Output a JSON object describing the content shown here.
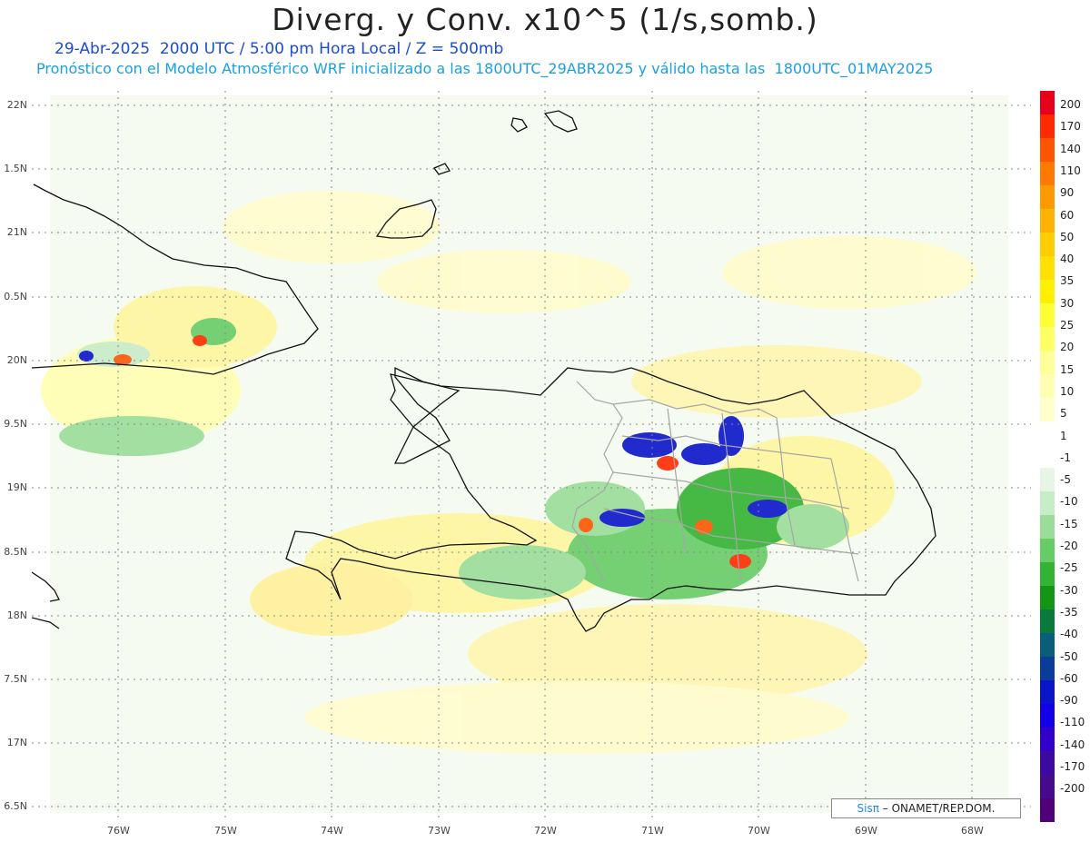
{
  "title": "Diverg. y Conv. x10^5 (1/s,somb.)",
  "subtitle_time": "29-Abr-2025  2000 UTC / 5:00 pm Hora Local / Z = 500mb",
  "subtitle_model": "Pronóstico con el Modelo Atmosférico WRF inicializado a las 1800UTC_29ABR2025 y válido hasta las  1800UTC_01MAY2025",
  "lat_labels": [
    "22N",
    "1.5N",
    "21N",
    "0.5N",
    "20N",
    "9.5N",
    "19N",
    "8.5N",
    "18N",
    "7.5N",
    "17N",
    "6.5N"
  ],
  "lon_labels": [
    "76W",
    "75W",
    "74W",
    "73W",
    "72W",
    "71W",
    "70W",
    "69W",
    "68W"
  ],
  "colorbar": {
    "labels": [
      "200",
      "170",
      "140",
      "110",
      "90",
      "60",
      "50",
      "40",
      "35",
      "30",
      "25",
      "20",
      "15",
      "10",
      "5",
      "1",
      "-1",
      "-5",
      "-10",
      "-15",
      "-20",
      "-25",
      "-30",
      "-35",
      "-40",
      "-50",
      "-60",
      "-90",
      "-110",
      "-140",
      "-170",
      "-200"
    ],
    "colors": [
      "#e8001a",
      "#ff2a00",
      "#ff5500",
      "#ff7a00",
      "#ff9900",
      "#ffb300",
      "#ffcc00",
      "#ffe000",
      "#fff000",
      "#ffff33",
      "#ffff66",
      "#ffff99",
      "#ffffb3",
      "#ffffcc",
      "#ffffff",
      "#ffffff",
      "#e6f5e6",
      "#c8ebc8",
      "#99dd99",
      "#66cc66",
      "#33b233",
      "#139613",
      "#0a7a3c",
      "#0a5e7a",
      "#0a3c9a",
      "#0a14c8",
      "#1400e6",
      "#3200c8",
      "#3c0aa0",
      "#460a8c",
      "#500078"
    ]
  },
  "credit": {
    "sis": "Sisπ",
    "rest": "– ONAMET/REP.DOM."
  }
}
